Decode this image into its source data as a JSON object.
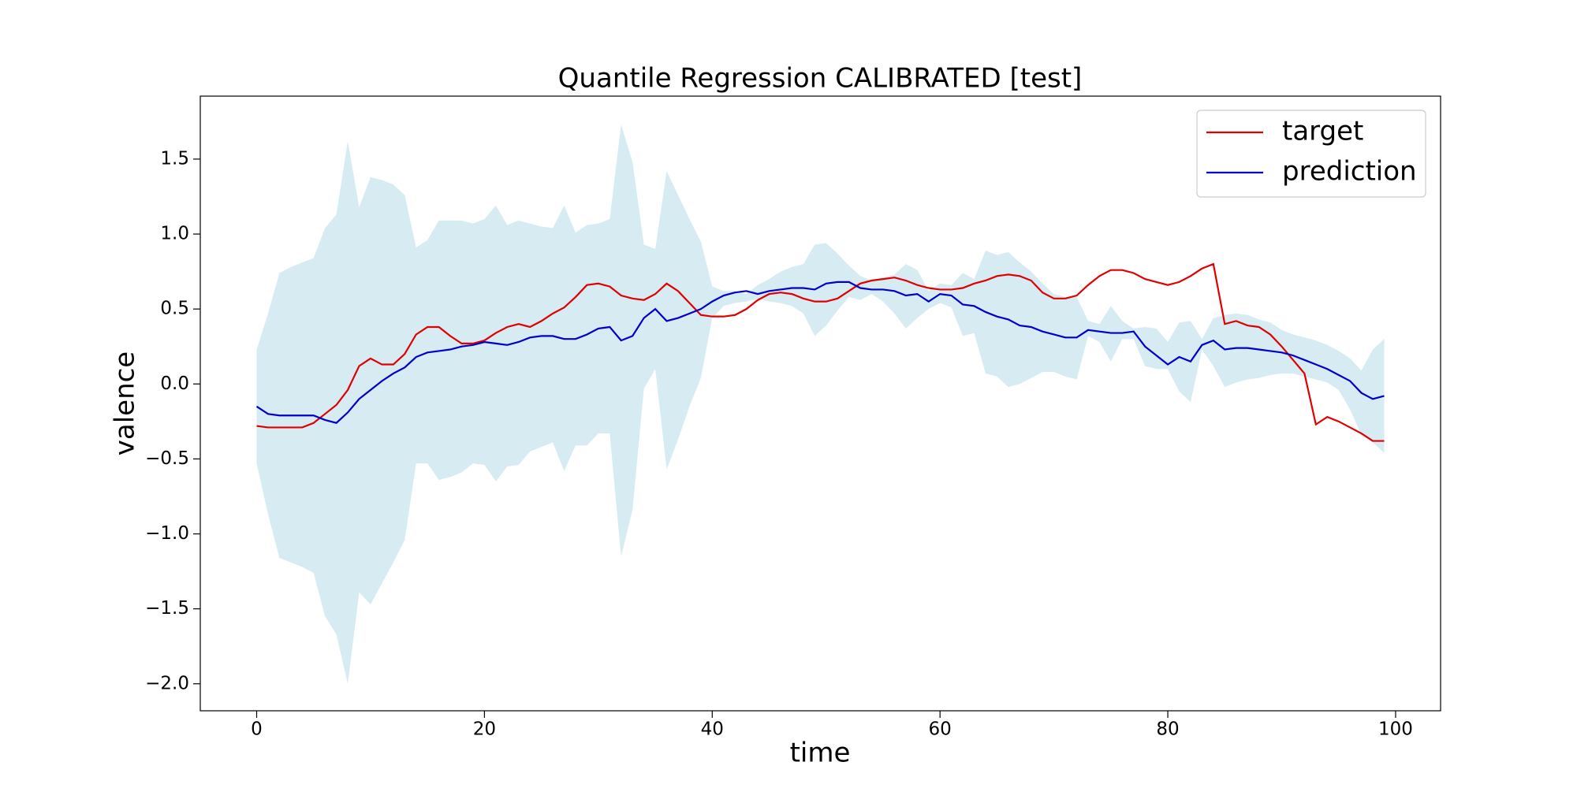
{
  "chart_data": {
    "type": "line",
    "title": "Quantile Regression CALIBRATED [test]",
    "xlabel": "time",
    "ylabel": "valence",
    "x": [
      0,
      1,
      2,
      3,
      4,
      5,
      6,
      7,
      8,
      9,
      10,
      11,
      12,
      13,
      14,
      15,
      16,
      17,
      18,
      19,
      20,
      21,
      22,
      23,
      24,
      25,
      26,
      27,
      28,
      29,
      30,
      31,
      32,
      33,
      34,
      35,
      36,
      37,
      38,
      39,
      40,
      41,
      42,
      43,
      44,
      45,
      46,
      47,
      48,
      49,
      50,
      51,
      52,
      53,
      54,
      55,
      56,
      57,
      58,
      59,
      60,
      61,
      62,
      63,
      64,
      65,
      66,
      67,
      68,
      69,
      70,
      71,
      72,
      73,
      74,
      75,
      76,
      77,
      78,
      79,
      80,
      81,
      82,
      83,
      84,
      85,
      86,
      87,
      88,
      89,
      90,
      91,
      92,
      93,
      94,
      95,
      96,
      97,
      98,
      99
    ],
    "series": [
      {
        "name": "target",
        "color": "#e00000",
        "values": [
          -0.28,
          -0.29,
          -0.29,
          -0.29,
          -0.29,
          -0.26,
          -0.2,
          -0.14,
          -0.04,
          0.12,
          0.17,
          0.13,
          0.13,
          0.2,
          0.33,
          0.38,
          0.38,
          0.32,
          0.27,
          0.27,
          0.29,
          0.34,
          0.38,
          0.4,
          0.38,
          0.42,
          0.47,
          0.51,
          0.58,
          0.66,
          0.67,
          0.65,
          0.59,
          0.57,
          0.56,
          0.6,
          0.67,
          0.62,
          0.54,
          0.46,
          0.45,
          0.45,
          0.46,
          0.5,
          0.56,
          0.6,
          0.61,
          0.6,
          0.57,
          0.55,
          0.55,
          0.57,
          0.62,
          0.67,
          0.69,
          0.7,
          0.71,
          0.69,
          0.66,
          0.64,
          0.63,
          0.63,
          0.64,
          0.67,
          0.69,
          0.72,
          0.73,
          0.72,
          0.69,
          0.61,
          0.57,
          0.57,
          0.59,
          0.66,
          0.72,
          0.76,
          0.76,
          0.74,
          0.7,
          0.68,
          0.66,
          0.68,
          0.72,
          0.77,
          0.8,
          0.4,
          0.42,
          0.39,
          0.38,
          0.33,
          0.25,
          0.16,
          0.07,
          -0.27,
          -0.22,
          -0.25,
          -0.29,
          -0.33,
          -0.38,
          -0.38
        ]
      },
      {
        "name": "prediction",
        "color": "#0000cc",
        "values": [
          -0.15,
          -0.2,
          -0.21,
          -0.21,
          -0.21,
          -0.21,
          -0.24,
          -0.26,
          -0.19,
          -0.1,
          -0.04,
          0.02,
          0.07,
          0.11,
          0.18,
          0.21,
          0.22,
          0.23,
          0.25,
          0.26,
          0.28,
          0.27,
          0.26,
          0.28,
          0.31,
          0.32,
          0.32,
          0.3,
          0.3,
          0.33,
          0.37,
          0.38,
          0.29,
          0.32,
          0.44,
          0.5,
          0.42,
          0.44,
          0.47,
          0.5,
          0.55,
          0.59,
          0.61,
          0.62,
          0.6,
          0.62,
          0.63,
          0.64,
          0.64,
          0.63,
          0.67,
          0.68,
          0.68,
          0.64,
          0.63,
          0.63,
          0.62,
          0.59,
          0.6,
          0.55,
          0.6,
          0.59,
          0.53,
          0.52,
          0.48,
          0.45,
          0.43,
          0.39,
          0.38,
          0.35,
          0.33,
          0.31,
          0.31,
          0.36,
          0.35,
          0.34,
          0.34,
          0.35,
          0.25,
          0.19,
          0.13,
          0.18,
          0.15,
          0.26,
          0.29,
          0.23,
          0.24,
          0.24,
          0.23,
          0.22,
          0.21,
          0.19,
          0.16,
          0.13,
          0.1,
          0.06,
          0.02,
          -0.06,
          -0.1,
          -0.08
        ]
      }
    ],
    "band": {
      "color": "#add8e6",
      "alpha": 0.5,
      "upper": [
        0.23,
        0.47,
        0.74,
        0.78,
        0.81,
        0.84,
        1.04,
        1.13,
        1.62,
        1.18,
        1.38,
        1.36,
        1.33,
        1.26,
        0.91,
        0.96,
        1.09,
        1.09,
        1.09,
        1.07,
        1.1,
        1.19,
        1.06,
        1.09,
        1.07,
        1.05,
        1.04,
        1.19,
        1.01,
        1.06,
        1.07,
        1.1,
        1.73,
        1.48,
        0.93,
        0.9,
        1.42,
        1.26,
        1.1,
        0.95,
        0.65,
        0.62,
        0.62,
        0.6,
        0.66,
        0.7,
        0.75,
        0.78,
        0.8,
        0.93,
        0.94,
        0.87,
        0.79,
        0.72,
        0.69,
        0.71,
        0.73,
        0.8,
        0.76,
        0.62,
        0.67,
        0.66,
        0.74,
        0.7,
        0.89,
        0.86,
        0.88,
        0.81,
        0.75,
        0.67,
        0.6,
        0.58,
        0.58,
        0.42,
        0.4,
        0.52,
        0.42,
        0.37,
        0.38,
        0.37,
        0.28,
        0.41,
        0.42,
        0.3,
        0.44,
        0.46,
        0.47,
        0.46,
        0.43,
        0.41,
        0.36,
        0.33,
        0.31,
        0.29,
        0.26,
        0.22,
        0.17,
        0.09,
        0.23,
        0.3
      ],
      "lower": [
        -0.53,
        -0.87,
        -1.16,
        -1.19,
        -1.22,
        -1.26,
        -1.55,
        -1.67,
        -2.0,
        -1.39,
        -1.47,
        -1.33,
        -1.19,
        -1.04,
        -0.53,
        -0.53,
        -0.64,
        -0.62,
        -0.59,
        -0.53,
        -0.54,
        -0.65,
        -0.55,
        -0.54,
        -0.45,
        -0.42,
        -0.39,
        -0.58,
        -0.41,
        -0.41,
        -0.33,
        -0.33,
        -1.15,
        -0.84,
        -0.03,
        0.1,
        -0.57,
        -0.37,
        -0.15,
        0.04,
        0.44,
        0.52,
        0.54,
        0.55,
        0.57,
        0.55,
        0.54,
        0.52,
        0.47,
        0.32,
        0.39,
        0.49,
        0.58,
        0.56,
        0.6,
        0.55,
        0.47,
        0.37,
        0.44,
        0.5,
        0.54,
        0.51,
        0.32,
        0.34,
        0.07,
        0.05,
        -0.02,
        0.0,
        0.04,
        0.08,
        0.08,
        0.05,
        0.03,
        0.32,
        0.28,
        0.15,
        0.3,
        0.3,
        0.12,
        0.1,
        0.1,
        -0.05,
        -0.12,
        0.23,
        0.12,
        -0.02,
        0.01,
        0.03,
        0.04,
        0.06,
        0.07,
        0.07,
        0.05,
        0.03,
        0.01,
        -0.04,
        -0.17,
        -0.34,
        -0.39,
        -0.46
      ]
    },
    "xlim": [
      -4.95,
      103.95
    ],
    "ylim": [
      -2.18,
      1.92
    ],
    "xticks": [
      0,
      20,
      40,
      60,
      80,
      100
    ],
    "yticks": [
      {
        "value": -2.0,
        "label": "−2.0"
      },
      {
        "value": -1.5,
        "label": "−1.5"
      },
      {
        "value": -1.0,
        "label": "−1.0"
      },
      {
        "value": -0.5,
        "label": "−0.5"
      },
      {
        "value": 0.0,
        "label": "0.0"
      },
      {
        "value": 0.5,
        "label": "0.5"
      },
      {
        "value": 1.0,
        "label": "1.0"
      },
      {
        "value": 1.5,
        "label": "1.5"
      }
    ],
    "legend": "upper right",
    "grid": false
  }
}
